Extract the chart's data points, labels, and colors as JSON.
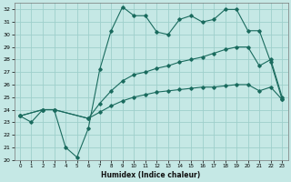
{
  "title": "",
  "xlabel": "Humidex (Indice chaleur)",
  "bg_color": "#c5e8e5",
  "grid_color": "#9ecfcb",
  "line_color": "#1a6b5e",
  "xlim": [
    -0.5,
    23.5
  ],
  "ylim": [
    20,
    32.5
  ],
  "yticks": [
    20,
    21,
    22,
    23,
    24,
    25,
    26,
    27,
    28,
    29,
    30,
    31,
    32
  ],
  "xticks": [
    0,
    1,
    2,
    3,
    4,
    5,
    6,
    7,
    8,
    9,
    10,
    11,
    12,
    13,
    14,
    15,
    16,
    17,
    18,
    19,
    20,
    21,
    22,
    23
  ],
  "line1_x": [
    0,
    1,
    2,
    3,
    4,
    5,
    6,
    7,
    8,
    9,
    10,
    11,
    12,
    13,
    14,
    15,
    16,
    17,
    18,
    19,
    20,
    21,
    22,
    23
  ],
  "line1_y": [
    23.5,
    23.0,
    24.0,
    24.0,
    21.0,
    20.2,
    22.5,
    27.2,
    30.3,
    32.2,
    31.5,
    31.5,
    30.2,
    30.0,
    31.2,
    31.5,
    31.0,
    31.2,
    32.0,
    32.0,
    30.3,
    30.3,
    27.8,
    24.8
  ],
  "line2_x": [
    0,
    2,
    3,
    6,
    7,
    8,
    9,
    10,
    11,
    12,
    13,
    14,
    15,
    16,
    17,
    18,
    19,
    20,
    21,
    22,
    23
  ],
  "line2_y": [
    23.5,
    24.0,
    24.0,
    23.3,
    24.5,
    25.5,
    26.3,
    26.8,
    27.0,
    27.3,
    27.5,
    27.8,
    28.0,
    28.2,
    28.5,
    28.8,
    29.0,
    29.0,
    27.5,
    28.0,
    25.0
  ],
  "line3_x": [
    0,
    2,
    3,
    6,
    7,
    8,
    9,
    10,
    11,
    12,
    13,
    14,
    15,
    16,
    17,
    18,
    19,
    20,
    21,
    22,
    23
  ],
  "line3_y": [
    23.5,
    24.0,
    24.0,
    23.3,
    23.8,
    24.3,
    24.7,
    25.0,
    25.2,
    25.4,
    25.5,
    25.6,
    25.7,
    25.8,
    25.8,
    25.9,
    26.0,
    26.0,
    25.5,
    25.8,
    24.8
  ]
}
